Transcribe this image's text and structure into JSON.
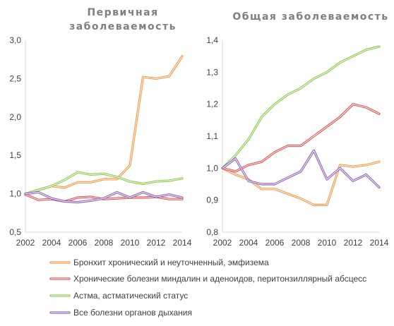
{
  "colors": {
    "bronchitis": "#f79646",
    "tonsils": "#e05050",
    "asthma": "#8cc84b",
    "all": "#8c62b4"
  },
  "legend": [
    {
      "key": "bronchitis",
      "label": "Бронхит хронический и неуточненный, эмфизема"
    },
    {
      "key": "tonsils",
      "label": "Хронические болезни миндалин и аденоидов, перитонзиллярный абсцесс"
    },
    {
      "key": "asthma",
      "label": "Астма, астматический статус"
    },
    {
      "key": "all",
      "label": "Все болезни органов дыхания"
    }
  ],
  "chart_data": [
    {
      "type": "line",
      "title_lines": [
        "Первичная",
        "заболеваемость"
      ],
      "x": [
        2002,
        2003,
        2004,
        2005,
        2006,
        2007,
        2008,
        2009,
        2010,
        2011,
        2012,
        2013,
        2014
      ],
      "xticks": [
        "2002",
        "2004",
        "2006",
        "2008",
        "2010",
        "2012",
        "2014"
      ],
      "ylim": [
        0.5,
        3.0
      ],
      "yticks": [
        "0,5",
        "1,0",
        "1,5",
        "2,0",
        "2,5",
        "3,0"
      ],
      "grid": false,
      "series": [
        {
          "key": "bronchitis",
          "values": [
            1.0,
            1.05,
            1.1,
            1.08,
            1.15,
            1.15,
            1.19,
            1.19,
            1.37,
            2.52,
            2.5,
            2.53,
            2.79
          ]
        },
        {
          "key": "tonsils",
          "values": [
            0.99,
            0.92,
            0.93,
            0.9,
            0.95,
            0.96,
            0.93,
            0.94,
            0.95,
            0.95,
            0.96,
            0.93,
            0.93
          ]
        },
        {
          "key": "asthma",
          "values": [
            1.0,
            1.05,
            1.1,
            1.18,
            1.28,
            1.25,
            1.26,
            1.22,
            1.16,
            1.13,
            1.16,
            1.17,
            1.2
          ]
        },
        {
          "key": "all",
          "values": [
            1.0,
            1.02,
            0.94,
            0.9,
            0.89,
            0.91,
            0.94,
            1.02,
            0.95,
            1.02,
            0.96,
            0.99,
            0.95
          ]
        }
      ]
    },
    {
      "type": "line",
      "title_lines": [
        "Общая заболеваемость"
      ],
      "x": [
        2002,
        2003,
        2004,
        2005,
        2006,
        2007,
        2008,
        2009,
        2010,
        2011,
        2012,
        2013,
        2014
      ],
      "xticks": [
        "2002",
        "2004",
        "2006",
        "2008",
        "2010",
        "2012",
        "2014"
      ],
      "ylim": [
        0.8,
        1.4
      ],
      "yticks": [
        "0,8",
        "0,9",
        "1,0",
        "1,1",
        "1,2",
        "1,3",
        "1,4"
      ],
      "grid": false,
      "series": [
        {
          "key": "bronchitis",
          "values": [
            1.0,
            0.98,
            0.965,
            0.935,
            0.935,
            0.92,
            0.905,
            0.885,
            0.885,
            1.01,
            1.005,
            1.01,
            1.02
          ]
        },
        {
          "key": "tonsils",
          "values": [
            1.0,
            0.99,
            1.01,
            1.02,
            1.05,
            1.07,
            1.07,
            1.1,
            1.13,
            1.16,
            1.2,
            1.19,
            1.17
          ]
        },
        {
          "key": "asthma",
          "values": [
            1.0,
            1.04,
            1.09,
            1.16,
            1.2,
            1.23,
            1.25,
            1.28,
            1.3,
            1.33,
            1.35,
            1.37,
            1.38
          ]
        },
        {
          "key": "all",
          "values": [
            1.0,
            1.03,
            0.96,
            0.95,
            0.95,
            0.97,
            0.99,
            1.055,
            0.965,
            1.0,
            0.96,
            0.98,
            0.94
          ]
        }
      ]
    }
  ]
}
